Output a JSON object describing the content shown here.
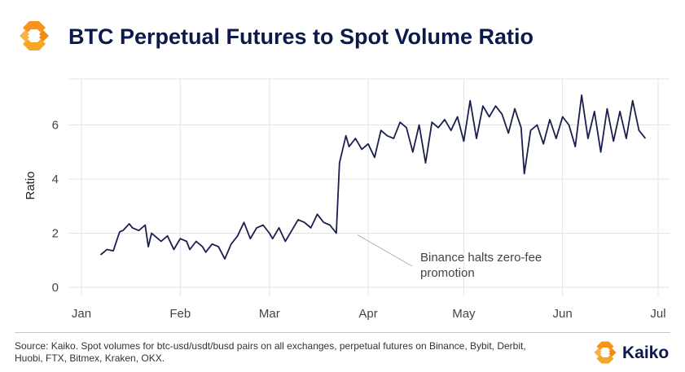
{
  "header": {
    "title": "BTC Perpetual Futures to Spot Volume Ratio",
    "logo_icon": "kaiko-logo-icon"
  },
  "footer": {
    "source": "Source: Kaiko. Spot volumes for btc-usd/usdt/busd pairs on all exchanges, perpetual futures on Binance, Bybit, Derbit, Huobi, FTX, Bitmex, Kraken, OKX.",
    "brand": "Kaiko"
  },
  "colors": {
    "line": "#1b1f4d",
    "title": "#0b1a4a",
    "logo_orange": "#f7931a",
    "grid": "#e3e3e3"
  },
  "chart_data": {
    "type": "line",
    "title": "BTC Perpetual Futures to Spot Volume Ratio",
    "xlabel": "",
    "ylabel": "Ratio",
    "ylim": [
      0,
      7.7
    ],
    "yticks": [
      0,
      2,
      4,
      6
    ],
    "xticks": [
      "Jan",
      "Feb",
      "Mar",
      "Apr",
      "May",
      "Jun",
      "Jul"
    ],
    "xlim": [
      "2023-01-01",
      "2023-07-01"
    ],
    "grid": true,
    "annotation": {
      "text": [
        "Binance halts zero-fee",
        "promotion"
      ],
      "x": "2023-03-22",
      "y": 2.0
    },
    "series": [
      {
        "x": [
          "2023-01-07",
          "2023-01-09",
          "2023-01-11",
          "2023-01-13",
          "2023-01-14",
          "2023-01-16",
          "2023-01-17",
          "2023-01-19",
          "2023-01-21",
          "2023-01-22",
          "2023-01-23",
          "2023-01-25",
          "2023-01-26",
          "2023-01-28",
          "2023-01-30",
          "2023-02-01",
          "2023-02-03",
          "2023-02-04",
          "2023-02-06",
          "2023-02-08",
          "2023-02-09",
          "2023-02-11",
          "2023-02-13",
          "2023-02-15",
          "2023-02-17",
          "2023-02-19",
          "2023-02-21",
          "2023-02-23",
          "2023-02-25",
          "2023-02-27",
          "2023-03-01",
          "2023-03-02",
          "2023-03-04",
          "2023-03-06",
          "2023-03-08",
          "2023-03-10",
          "2023-03-12",
          "2023-03-14",
          "2023-03-16",
          "2023-03-18",
          "2023-03-20",
          "2023-03-22",
          "2023-03-23",
          "2023-03-25",
          "2023-03-26",
          "2023-03-28",
          "2023-03-30",
          "2023-04-01",
          "2023-04-03",
          "2023-04-05",
          "2023-04-07",
          "2023-04-09",
          "2023-04-11",
          "2023-04-13",
          "2023-04-15",
          "2023-04-17",
          "2023-04-19",
          "2023-04-21",
          "2023-04-23",
          "2023-04-25",
          "2023-04-27",
          "2023-04-29",
          "2023-05-01",
          "2023-05-03",
          "2023-05-05",
          "2023-05-07",
          "2023-05-09",
          "2023-05-11",
          "2023-05-13",
          "2023-05-15",
          "2023-05-17",
          "2023-05-19",
          "2023-05-20",
          "2023-05-22",
          "2023-05-24",
          "2023-05-26",
          "2023-05-28",
          "2023-05-30",
          "2023-06-01",
          "2023-06-03",
          "2023-06-05",
          "2023-06-07",
          "2023-06-09",
          "2023-06-11",
          "2023-06-13",
          "2023-06-15",
          "2023-06-17",
          "2023-06-19",
          "2023-06-21",
          "2023-06-23",
          "2023-06-25",
          "2023-06-27"
        ],
        "y": [
          1.2,
          1.4,
          1.35,
          2.05,
          2.1,
          2.35,
          2.2,
          2.1,
          2.3,
          1.5,
          2.0,
          1.8,
          1.7,
          1.9,
          1.4,
          1.8,
          1.7,
          1.4,
          1.7,
          1.5,
          1.3,
          1.6,
          1.5,
          1.05,
          1.6,
          1.9,
          2.4,
          1.8,
          2.2,
          2.3,
          2.0,
          1.8,
          2.2,
          1.7,
          2.1,
          2.5,
          2.4,
          2.2,
          2.7,
          2.4,
          2.3,
          2.0,
          4.6,
          5.6,
          5.2,
          5.5,
          5.1,
          5.3,
          4.8,
          5.8,
          5.6,
          5.5,
          6.1,
          5.9,
          5.0,
          6.0,
          4.6,
          6.1,
          5.9,
          6.2,
          5.8,
          6.3,
          5.4,
          6.9,
          5.5,
          6.7,
          6.3,
          6.7,
          6.4,
          5.7,
          6.6,
          5.9,
          4.2,
          5.8,
          6.0,
          5.3,
          6.2,
          5.5,
          6.3,
          6.0,
          5.2,
          7.1,
          5.5,
          6.5,
          5.0,
          6.6,
          5.4,
          6.5,
          5.5,
          6.9,
          5.8,
          5.5
        ]
      }
    ]
  }
}
